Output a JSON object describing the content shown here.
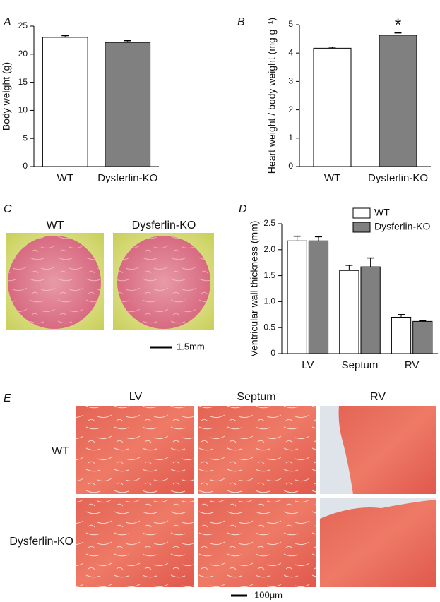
{
  "chart_data": [
    {
      "type": "bar",
      "panel_label": "A",
      "ylabel": "Body weight (g)",
      "categories": [
        "WT",
        "Dysferlin-KO"
      ],
      "values": [
        23.0,
        22.1
      ],
      "errors": [
        0.3,
        0.3
      ],
      "colors": [
        "#ffffff",
        "#808080"
      ],
      "ylim": [
        0,
        25
      ],
      "yticks": [
        0,
        5,
        10,
        15,
        20,
        25
      ]
    },
    {
      "type": "bar",
      "panel_label": "B",
      "ylabel": "Heart weight / body weight (mg g⁻¹)",
      "categories": [
        "WT",
        "Dysferlin-KO"
      ],
      "values": [
        4.17,
        4.63
      ],
      "errors": [
        0.04,
        0.08
      ],
      "colors": [
        "#ffffff",
        "#808080"
      ],
      "ylim": [
        0,
        5
      ],
      "yticks": [
        0,
        1,
        2,
        3,
        4,
        5
      ],
      "annotation": "*"
    },
    {
      "type": "grouped_bar",
      "panel_label": "D",
      "ylabel": "Ventricular wall thickness (mm)",
      "categories": [
        "LV",
        "Septum",
        "RV"
      ],
      "series": [
        {
          "name": "WT",
          "color": "#ffffff",
          "values": [
            2.17,
            1.6,
            0.7
          ],
          "errors": [
            0.09,
            0.1,
            0.05
          ]
        },
        {
          "name": "Dysferlin-KO",
          "color": "#808080",
          "values": [
            2.17,
            1.67,
            0.62
          ],
          "errors": [
            0.08,
            0.17,
            0.01
          ]
        }
      ],
      "ylim": [
        0,
        2.5
      ],
      "yticks": [
        0,
        0.5,
        {
          "value": 1,
          "label": "1.0"
        },
        1.5,
        {
          "value": 2,
          "label": "2.0"
        },
        2.5
      ],
      "legend": "top-right"
    }
  ],
  "panel_c": {
    "label": "C",
    "titles": [
      "WT",
      "Dysferlin-KO"
    ],
    "scale_bar": "1.5mm"
  },
  "panel_e": {
    "label": "E",
    "columns": [
      "LV",
      "Septum",
      "RV"
    ],
    "rows": [
      "WT",
      "Dysferlin-KO"
    ],
    "scale_bar": "100μm"
  }
}
